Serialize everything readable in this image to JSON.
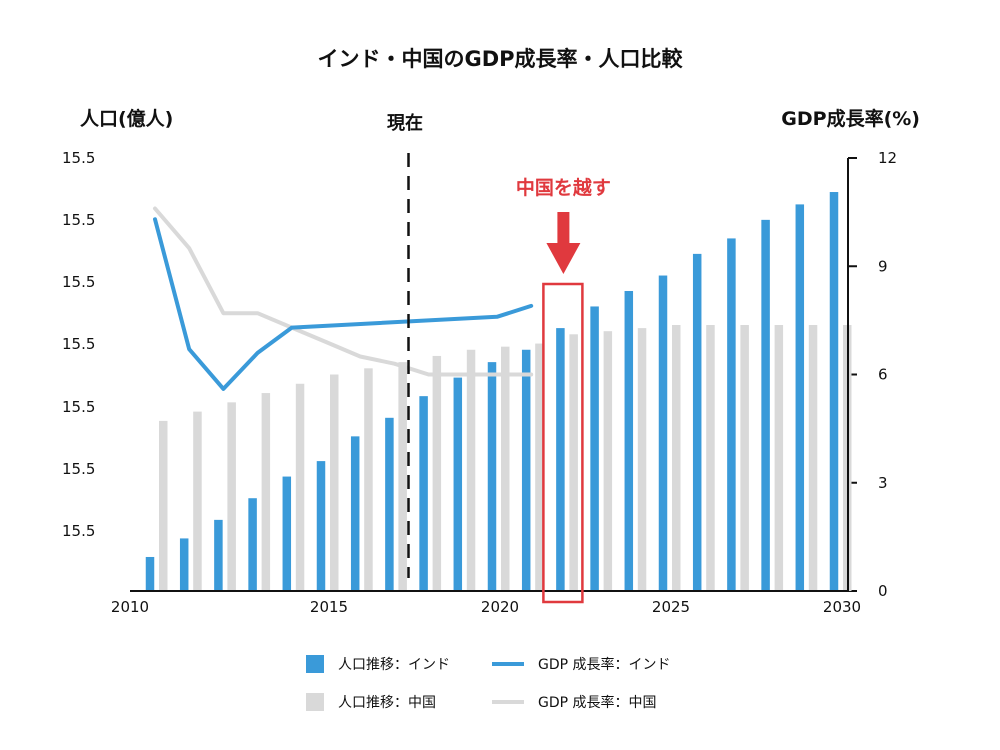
{
  "chart_data": {
    "type": "bar",
    "title": "インド・中国のGDP成長率・人口比較",
    "left_axis_title": "人口(億人)",
    "right_axis_title": "GDP成長率(%)",
    "now_label": "現在",
    "callout_label": "中国を越す",
    "left_tick_labels": [
      "15.5",
      "15.5",
      "15.5",
      "15.5",
      "15.5",
      "15.5",
      "15.5"
    ],
    "right_ticks": [
      "0",
      "3",
      "6",
      "9",
      "12"
    ],
    "right_ylim": [
      0,
      12
    ],
    "x_tick_labels": [
      "2010",
      "2015",
      "2020",
      "2025",
      "2030"
    ],
    "x_tick_years": [
      2010,
      2015,
      2020,
      2025,
      2030
    ],
    "years": [
      2010,
      2011,
      2012,
      2013,
      2014,
      2015,
      2016,
      2017,
      2018,
      2019,
      2020,
      2021,
      2022,
      2023,
      2024,
      2025,
      2026,
      2027,
      2028,
      2029,
      2030
    ],
    "left_ylim": [
      0,
      14
    ],
    "now_year": 2017.5,
    "highlight_year": 2022,
    "series": [
      {
        "name": "人口推移：インド",
        "kind": "bar",
        "color": "#3a9ad9",
        "values": [
          1.1,
          1.7,
          2.3,
          3.0,
          3.7,
          4.2,
          5.0,
          5.6,
          6.3,
          6.9,
          7.4,
          7.8,
          8.5,
          9.2,
          9.7,
          10.2,
          10.9,
          11.4,
          12.0,
          12.5,
          12.9
        ]
      },
      {
        "name": "人口推移：中国",
        "kind": "bar",
        "color": "#d9d9d9",
        "values": [
          5.5,
          5.8,
          6.1,
          6.4,
          6.7,
          7.0,
          7.2,
          7.4,
          7.6,
          7.8,
          7.9,
          8.0,
          8.3,
          8.4,
          8.5,
          8.6,
          8.6,
          8.6,
          8.6,
          8.6,
          8.6
        ]
      },
      {
        "name": "GDP 成長率：インド",
        "kind": "line",
        "color": "#3a9ad9",
        "axis": "right",
        "x": [
          2010,
          2011,
          2012,
          2013,
          2014,
          2020,
          2021
        ],
        "values": [
          10.3,
          6.7,
          5.6,
          6.6,
          7.3,
          7.6,
          7.9
        ]
      },
      {
        "name": "GDP 成長率：中国",
        "kind": "line",
        "color": "#d9d9d9",
        "axis": "right",
        "x": [
          2010,
          2011,
          2012,
          2013,
          2014,
          2015,
          2016,
          2017,
          2018,
          2019,
          2020,
          2021
        ],
        "values": [
          10.6,
          9.5,
          7.7,
          7.7,
          7.3,
          6.9,
          6.5,
          6.3,
          6.0,
          6.0,
          6.0,
          6.0
        ]
      }
    ],
    "legend": [
      {
        "label": "人口推移：インド",
        "shape": "square",
        "color": "#3a9ad9"
      },
      {
        "label": "GDP 成長率：インド",
        "shape": "line",
        "color": "#3a9ad9"
      },
      {
        "label": "人口推移：中国",
        "shape": "square",
        "color": "#d9d9d9"
      },
      {
        "label": "GDP 成長率：中国",
        "shape": "line",
        "color": "#d9d9d9"
      }
    ],
    "highlight_color": "#e0393e",
    "grid": false,
    "legend_position": "bottom"
  }
}
